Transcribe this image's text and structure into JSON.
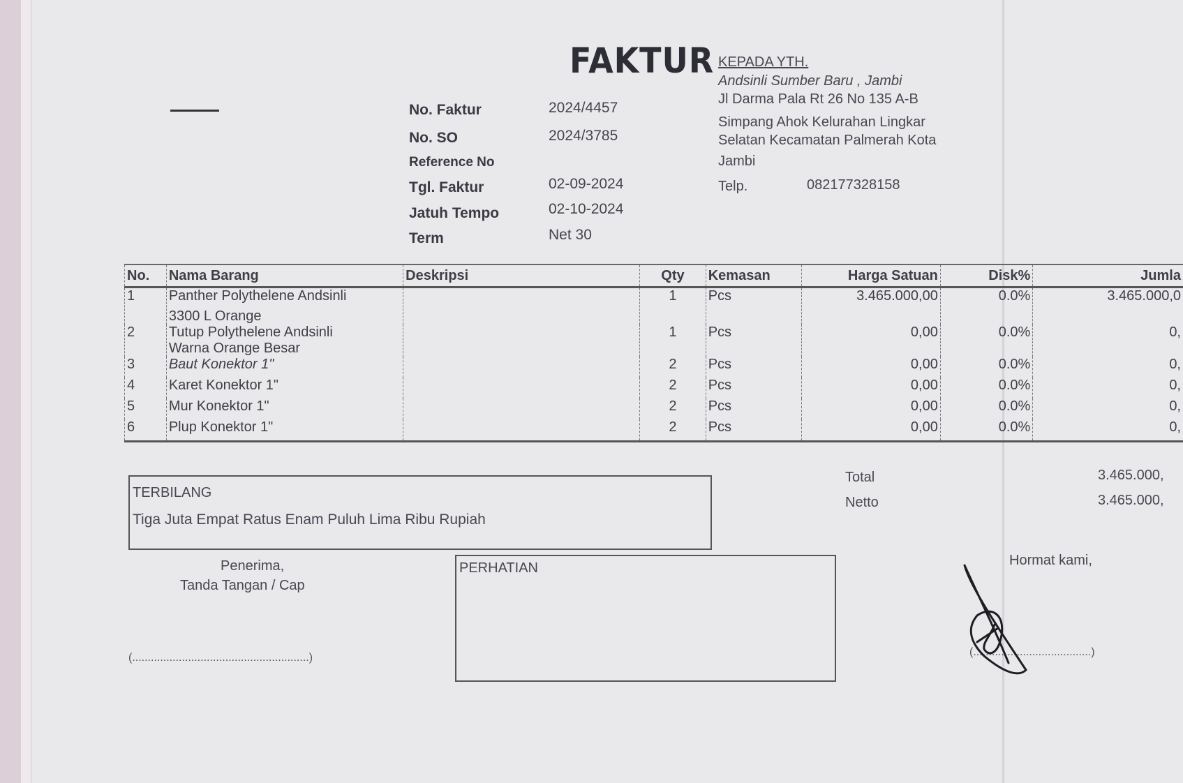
{
  "title": "FAKTUR",
  "invoice_info": [
    {
      "label": "No. Faktur",
      "value": "2024/4457"
    },
    {
      "label": "No. SO",
      "value": "2024/3785"
    },
    {
      "label": "Reference No",
      "value": ""
    },
    {
      "label": "Tgl. Faktur",
      "value": "02-09-2024"
    },
    {
      "label": "Jatuh Tempo",
      "value": "02-10-2024"
    },
    {
      "label": "Term",
      "value": "Net 30"
    }
  ],
  "recipient": {
    "heading": "KEPADA YTH.",
    "lines": [
      "Andsinli Sumber Baru , Jambi",
      "Jl Darma Pala Rt 26 No 135 A-B",
      "Simpang Ahok Kelurahan Lingkar",
      "Selatan Kecamatan Palmerah Kota",
      "Jambi"
    ],
    "phone_label": "Telp.",
    "phone": "082177328158"
  },
  "table": {
    "headers": [
      "No.",
      "Nama Barang",
      "Deskripsi",
      "Qty",
      "Kemasan",
      "Harga Satuan",
      "Disk%",
      "Jumla"
    ],
    "rows": [
      {
        "no": "1",
        "name": "Panther Polythelene Andsinli",
        "name2": "3300 L Orange",
        "desc": "",
        "qty": "1",
        "unit": "Pcs",
        "price": "3.465.000,00",
        "disc": "0.0%",
        "amount": "3.465.000,0"
      },
      {
        "no": "2",
        "name": "Tutup Polythelene Andsinli",
        "name2": "Warna Orange Besar",
        "desc": "",
        "qty": "1",
        "unit": "Pcs",
        "price": "0,00",
        "disc": "0.0%",
        "amount": "0,"
      },
      {
        "no": "3",
        "name": "Baut Konektor 1\"",
        "desc": "",
        "qty": "2",
        "unit": "Pcs",
        "price": "0,00",
        "disc": "0.0%",
        "amount": "0,"
      },
      {
        "no": "4",
        "name": "Karet Konektor 1\"",
        "desc": "",
        "qty": "2",
        "unit": "Pcs",
        "price": "0,00",
        "disc": "0.0%",
        "amount": "0,"
      },
      {
        "no": "5",
        "name": "Mur Konektor 1\"",
        "desc": "",
        "qty": "2",
        "unit": "Pcs",
        "price": "0,00",
        "disc": "0.0%",
        "amount": "0,"
      },
      {
        "no": "6",
        "name": "Plup Konektor 1\"",
        "desc": "",
        "qty": "2",
        "unit": "Pcs",
        "price": "0,00",
        "disc": "0.0%",
        "amount": "0,"
      }
    ]
  },
  "totals": {
    "total_label": "Total",
    "total_value": "3.465.000,",
    "netto_label": "Netto",
    "netto_value": "3.465.000,"
  },
  "terbilang": {
    "label": "TERBILANG",
    "text": "Tiga Juta Empat Ratus Enam Puluh Lima Ribu Rupiah"
  },
  "receiver": {
    "line1": "Penerima,",
    "line2": "Tanda Tangan / Cap",
    "dots": "(.........................................................)"
  },
  "perhatian": {
    "label": "PERHATIAN"
  },
  "sender": {
    "label": "Hormat kami,",
    "dots": "(......................................)"
  }
}
